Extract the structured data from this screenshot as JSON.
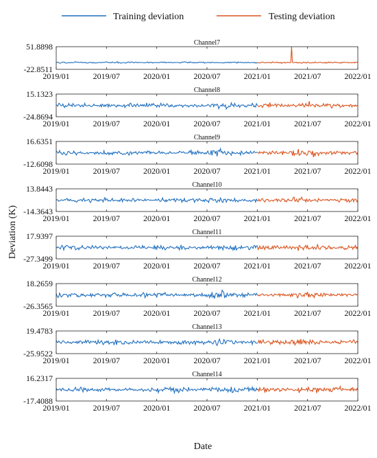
{
  "chart_data": {
    "type": "line",
    "description_note": "",
    "legend": {
      "placement": "top-center",
      "entries": [
        {
          "name": "Training deviation",
          "color": "#1f6fbf"
        },
        {
          "name": "Testing deviation",
          "color": "#d9541e"
        }
      ]
    },
    "xlabel": "Date",
    "ylabel": "Deviation (K)",
    "x_ticks": [
      "2019/01",
      "2019/07",
      "2020/01",
      "2020/07",
      "2021/01",
      "2021/07",
      "2022/01"
    ],
    "x_range": [
      "2019/01",
      "2022/01"
    ],
    "train_end": "2021/01",
    "series_colors": {
      "train": "#1f6fbf",
      "test": "#d9541e"
    },
    "panels": [
      {
        "title": "Channel7",
        "y_max_label": "51.8898",
        "y_min_label": "-22.8511",
        "ylim": [
          -22.8511,
          51.8898
        ]
      },
      {
        "title": "Channel8",
        "y_max_label": "15.1323",
        "y_min_label": "-24.8694",
        "ylim": [
          -24.8694,
          15.1323
        ]
      },
      {
        "title": "Channel9",
        "y_max_label": "16.6351",
        "y_min_label": "-12.6098",
        "ylim": [
          -12.6098,
          16.6351
        ]
      },
      {
        "title": "Channel10",
        "y_max_label": "13.8443",
        "y_min_label": "-14.3643",
        "ylim": [
          -14.3643,
          13.8443
        ]
      },
      {
        "title": "Channel11",
        "y_max_label": "17.9397",
        "y_min_label": "-27.3499",
        "ylim": [
          -27.3499,
          17.9397
        ]
      },
      {
        "title": "Channel12",
        "y_max_label": "18.2659",
        "y_min_label": "-26.3565",
        "ylim": [
          -26.3565,
          18.2659
        ]
      },
      {
        "title": "Channel13",
        "y_max_label": "19.4783",
        "y_min_label": "-25.9522",
        "ylim": [
          -25.9522,
          19.4783
        ]
      },
      {
        "title": "Channel14",
        "y_max_label": "16.2317",
        "y_min_label": "-17.4088",
        "ylim": [
          -17.4088,
          16.2317
        ]
      }
    ]
  }
}
